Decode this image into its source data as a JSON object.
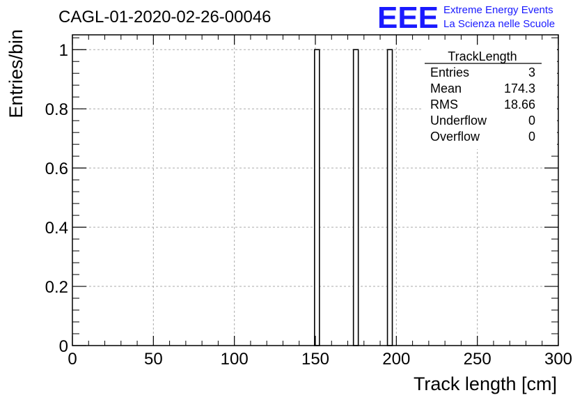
{
  "header": {
    "run_title": "CAGL-01-2020-02-26-00046",
    "logo_text": "EEE",
    "logo_line1": "Extreme Energy Events",
    "logo_line2": "La Scienza nelle Scuole",
    "logo_color": "#1a1aff"
  },
  "stats_box": {
    "title": "TrackLength",
    "rows": [
      {
        "label": "Entries",
        "value": "3"
      },
      {
        "label": "Mean",
        "value": "174.3"
      },
      {
        "label": "RMS",
        "value": "18.66"
      },
      {
        "label": "Underflow",
        "value": "0"
      },
      {
        "label": "Overflow",
        "value": "0"
      }
    ]
  },
  "chart_data": {
    "type": "bar",
    "title": "CAGL-01-2020-02-26-00046",
    "xlabel": "Track length [cm]",
    "ylabel": "Entries/bin",
    "xlim": [
      0,
      300
    ],
    "ylim": [
      0,
      1.05
    ],
    "grid": true,
    "x_ticks": [
      0,
      50,
      100,
      150,
      200,
      250,
      300
    ],
    "x_tick_labels": [
      "0",
      "50",
      "100",
      "150",
      "200",
      "250",
      "300"
    ],
    "y_ticks": [
      0,
      0.2,
      0.4,
      0.6,
      0.8,
      1
    ],
    "y_tick_labels": [
      "0",
      "0.2",
      "0.4",
      "0.6",
      "0.8",
      "1"
    ],
    "bins": [
      {
        "x_low": 149.5,
        "x_high": 152.5,
        "value": 1
      },
      {
        "x_low": 173.5,
        "x_high": 176.5,
        "value": 1
      },
      {
        "x_low": 194.5,
        "x_high": 197.5,
        "value": 1
      }
    ]
  }
}
